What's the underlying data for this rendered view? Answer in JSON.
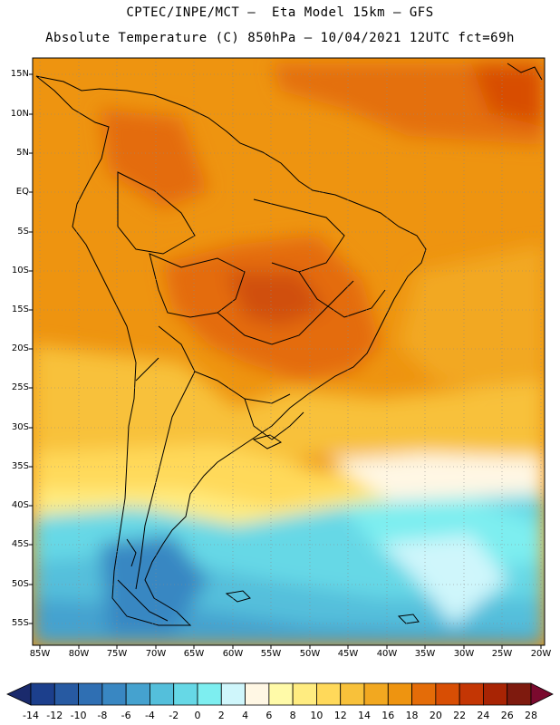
{
  "header": {
    "line1": "CPTEC/INPE/MCT –  Eta Model 15km – GFS",
    "line2": "Absolute Temperature (C) 850hPa – 10/04/2021 12UTC fct=69h"
  },
  "map": {
    "lat_labels": [
      "15N",
      "10N",
      "5N",
      "EQ",
      "5S",
      "10S",
      "15S",
      "20S",
      "25S",
      "30S",
      "35S",
      "40S",
      "45S",
      "50S",
      "55S"
    ],
    "lon_labels": [
      "85W",
      "80W",
      "75W",
      "70W",
      "65W",
      "60W",
      "55W",
      "50W",
      "45W",
      "40W",
      "35W",
      "30W",
      "25W",
      "20W"
    ],
    "grid": "dotted",
    "zones": [
      {
        "name": "northern-warm-band",
        "value": 22
      },
      {
        "name": "central-brazil-hot-core",
        "value": 24
      },
      {
        "name": "southern-mild-band",
        "value": 12
      },
      {
        "name": "southern-ocean-cold",
        "value": 2
      },
      {
        "name": "patagonia-cold",
        "value": -4
      }
    ]
  },
  "colorbar": {
    "labels": [
      "-14",
      "-12",
      "-10",
      "-8",
      "-6",
      "-4",
      "-2",
      "0",
      "2",
      "4",
      "6",
      "8",
      "10",
      "12",
      "14",
      "16",
      "18",
      "20",
      "22",
      "24",
      "26",
      "28"
    ],
    "colors": [
      "#1c3f8c",
      "#275aa2",
      "#2f6fb3",
      "#3987c2",
      "#45a2cf",
      "#54bfdb",
      "#66d8e6",
      "#7deef0",
      "#cff6fb",
      "#fff7e4",
      "#fffaa8",
      "#ffec80",
      "#ffd95a",
      "#f8c13a",
      "#f2a820",
      "#ee9410",
      "#e46c08",
      "#d84e04",
      "#c43604",
      "#a82404",
      "#7e1a0e"
    ],
    "end_low": "#1a2a6c",
    "end_high": "#7a0a2e"
  }
}
